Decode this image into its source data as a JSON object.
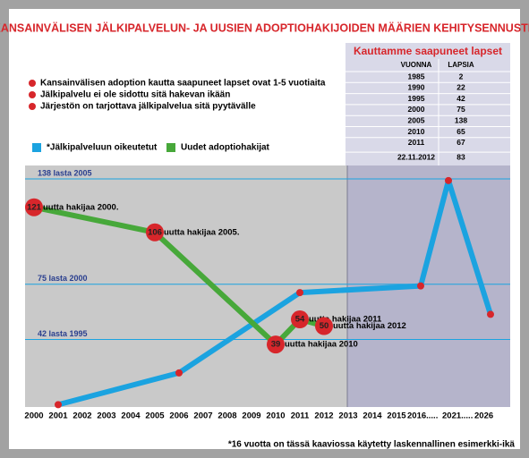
{
  "header": {
    "title": "KANSAINVÄLISEN JÄLKIPALVELUN- JA UUSIEN ADOPTIOHAKIJOIDEN MÄÄRIEN KEHITYSENNUSTE"
  },
  "bullets": [
    "Kansainvälisen adoption kautta saapuneet lapset ovat 1-5 vuotiaita",
    "Jälkipalvelu ei ole sidottu sitä hakevan ikään",
    "Järjestön on tarjottava jälkipalvelua sitä pyytävälle"
  ],
  "table": {
    "title": "Kauttamme saapuneet lapset",
    "columns": [
      "VUONNA",
      "LAPSIA"
    ],
    "rows": [
      [
        "1985",
        "2"
      ],
      [
        "1990",
        "22"
      ],
      [
        "1995",
        "42"
      ],
      [
        "2000",
        "75"
      ],
      [
        "2005",
        "138"
      ],
      [
        "2010",
        "65"
      ],
      [
        "2011",
        "67"
      ],
      [
        "22.11.2012",
        "83"
      ]
    ]
  },
  "chart_data": {
    "type": "line",
    "categories": [
      "2000",
      "2001",
      "2002",
      "2003",
      "2004",
      "2005",
      "2006",
      "2007",
      "2008",
      "2009",
      "2010",
      "2011",
      "2012",
      "2013",
      "2014",
      "2015",
      "2016.....",
      "2021.....",
      "2026"
    ],
    "ylim": [
      0,
      146
    ],
    "marker_color": "#d7262b",
    "series": [
      {
        "name": "*Jälkipalveluun oikeutetut",
        "color": "#1ba3e0",
        "x": [
          "2001",
          "2006",
          "2011",
          "2016.....",
          "2021.....",
          "2026"
        ],
        "values": [
          3,
          22,
          70,
          74,
          137,
          57
        ]
      },
      {
        "name": "Uudet adoptiohakijat",
        "color": "#47a83a",
        "x": [
          "2000",
          "2005",
          "2010",
          "2011",
          "2012"
        ],
        "values": [
          121,
          106,
          39,
          54,
          50
        ],
        "annotations": [
          "uutta hakijaa 2000.",
          "uutta hakijaa 2005.",
          "uutta hakijaa 2010",
          "uutta hakijaa 2011",
          "uutta hakijaa 2012"
        ]
      }
    ],
    "reference_lines": [
      {
        "value": 138,
        "label": "138 lasta 2005"
      },
      {
        "value": 75,
        "label": "75 lasta 2000"
      },
      {
        "value": 42,
        "label": "42 lasta 1995"
      }
    ]
  },
  "footnote": "*16 vuotta on tässä kaaviossa käytetty laskennallinen esimerkki-ikä"
}
